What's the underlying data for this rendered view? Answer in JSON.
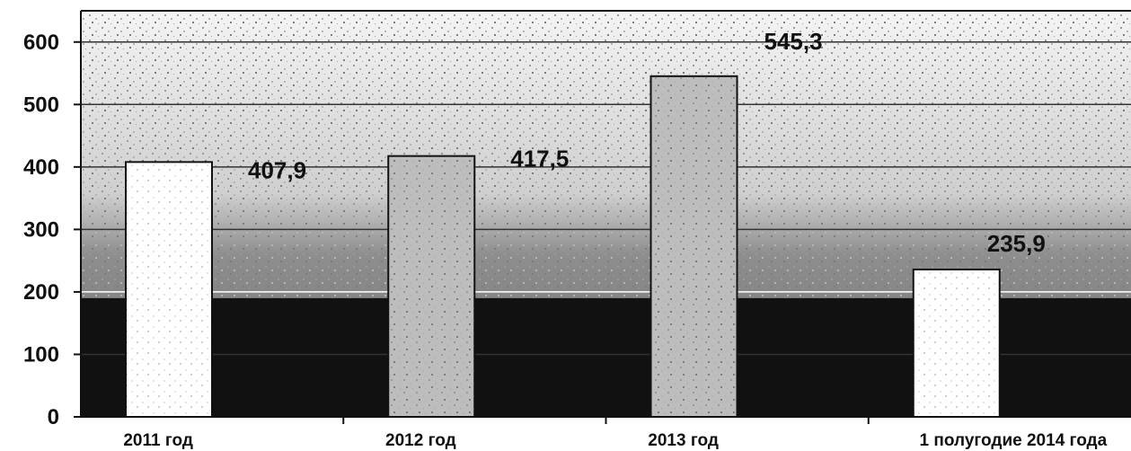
{
  "chart_data": {
    "type": "bar",
    "categories": [
      "2011 год",
      "2012 год",
      "2013 год",
      "1 полугодие 2014 года"
    ],
    "values": [
      407.9,
      417.5,
      545.3,
      235.9
    ],
    "data_labels": [
      "407,9",
      "417,5",
      "545,3",
      "235,9"
    ],
    "y_ticks": [
      "0",
      "100",
      "200",
      "300",
      "400",
      "500",
      "600"
    ],
    "ylim": [
      0,
      650
    ],
    "grid": true,
    "legend": "none",
    "colors": {
      "bar_fill": "#ffffff",
      "bar_stroke": "#111111",
      "grid": "#333333",
      "background_dark": "#111111",
      "background_mid": "#8a8a8a",
      "background_light": "#d0d0d0"
    }
  }
}
